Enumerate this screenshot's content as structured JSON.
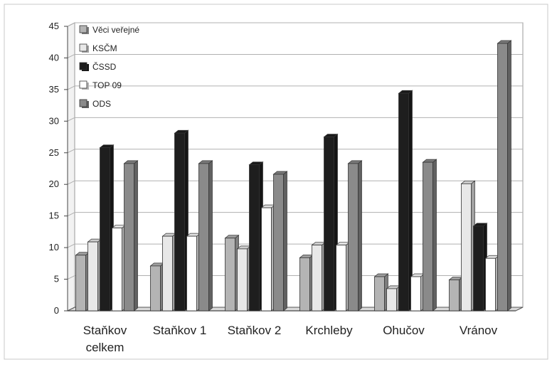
{
  "chart_data": {
    "type": "bar",
    "categories": [
      [
        "Staňkov",
        "celkem"
      ],
      [
        "Staňkov 1"
      ],
      [
        "Staňkov 2"
      ],
      [
        "Krchleby"
      ],
      [
        "Ohučov"
      ],
      [
        "Vránov"
      ]
    ],
    "series": [
      {
        "name": "Věci veřejné",
        "color": "#b4b4b4",
        "values": [
          8.8,
          7.1,
          11.5,
          8.4,
          5.4,
          4.9
        ]
      },
      {
        "name": "KSČM",
        "color": "#e8e8e8",
        "values": [
          10.9,
          11.8,
          9.8,
          10.4,
          3.5,
          20.1
        ]
      },
      {
        "name": "ČSSD",
        "color": "#1e1e1e",
        "values": [
          25.8,
          28.1,
          23.1,
          27.5,
          34.4,
          13.4
        ]
      },
      {
        "name": "TOP 09",
        "color": "#ffffff",
        "values": [
          13.1,
          11.8,
          16.3,
          10.4,
          5.4,
          8.3
        ]
      },
      {
        "name": "ODS",
        "color": "#8a8a8a",
        "values": [
          23.3,
          23.3,
          21.6,
          23.3,
          23.5,
          42.3
        ]
      }
    ],
    "ylim": [
      0,
      45
    ],
    "yticks": [
      "0",
      "5",
      "10",
      "15",
      "20",
      "25",
      "30",
      "35",
      "40",
      "45"
    ],
    "grid": true,
    "legend_position": "top-left",
    "title": "",
    "xlabel": "",
    "ylabel": ""
  }
}
